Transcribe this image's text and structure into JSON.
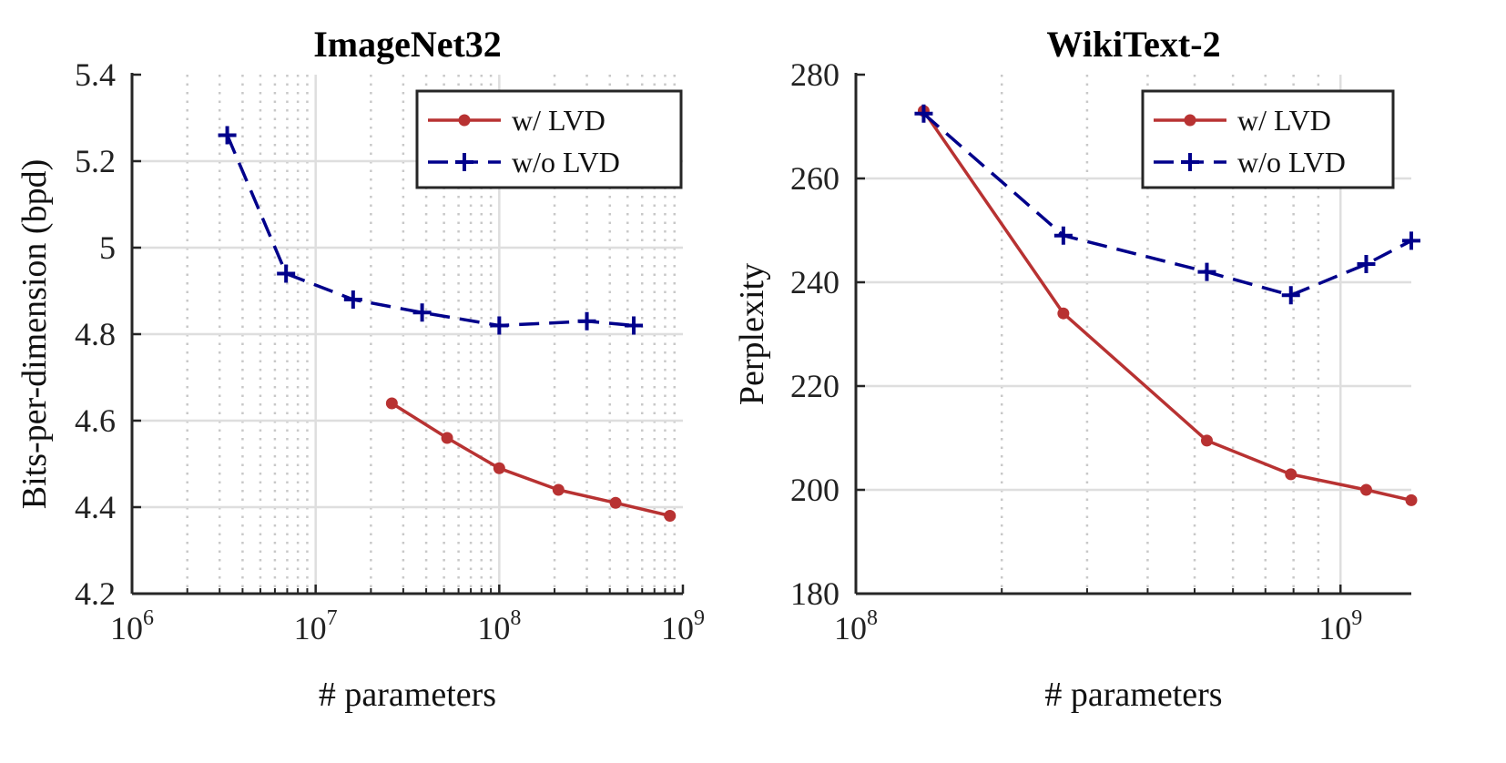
{
  "chart_data": [
    {
      "type": "line",
      "title": "ImageNet32",
      "xlabel": "# parameters",
      "ylabel": "Bits-per-dimension (bpd)",
      "xscale": "log",
      "xlim": [
        1000000,
        1000000000
      ],
      "ylim": [
        4.2,
        5.4
      ],
      "x_ticks": [
        {
          "base": "10",
          "exp": "6"
        },
        {
          "base": "10",
          "exp": "7"
        },
        {
          "base": "10",
          "exp": "8"
        },
        {
          "base": "10",
          "exp": "9"
        }
      ],
      "y_ticks": [
        "4.2",
        "4.4",
        "4.6",
        "4.8",
        "5",
        "5.2",
        "5.4"
      ],
      "grid": true,
      "legend_position": "top-right",
      "series": [
        {
          "name": "w/ LVD",
          "color": "#b83232",
          "marker": "dot",
          "dashed": false,
          "x": [
            26000000,
            52000000,
            100000000,
            210000000,
            430000000,
            850000000
          ],
          "y": [
            4.64,
            4.56,
            4.49,
            4.44,
            4.41,
            4.38
          ]
        },
        {
          "name": "w/o LVD",
          "color": "#00008b",
          "marker": "plus",
          "dashed": true,
          "x": [
            3300000,
            6900000,
            16000000,
            38000000,
            100000000,
            300000000,
            540000000
          ],
          "y": [
            5.26,
            4.94,
            4.88,
            4.85,
            4.82,
            4.83,
            4.82
          ]
        }
      ]
    },
    {
      "type": "line",
      "title": "WikiText-2",
      "xlabel": "# parameters",
      "ylabel": "Perplexity",
      "xscale": "log",
      "xlim": [
        100000000,
        1400000000
      ],
      "ylim": [
        180,
        280
      ],
      "x_ticks": [
        {
          "base": "10",
          "exp": "8"
        },
        {
          "base": "10",
          "exp": "9"
        }
      ],
      "y_ticks": [
        "180",
        "200",
        "220",
        "240",
        "260",
        "280"
      ],
      "grid": true,
      "legend_position": "top-right",
      "series": [
        {
          "name": "w/ LVD",
          "color": "#b83232",
          "marker": "dot",
          "dashed": false,
          "x": [
            138000000,
            268000000,
            530000000,
            790000000,
            1130000000,
            1400000000
          ],
          "y": [
            273,
            234,
            209.5,
            203,
            200,
            198
          ]
        },
        {
          "name": "w/o LVD",
          "color": "#00008b",
          "marker": "plus",
          "dashed": true,
          "x": [
            138000000,
            268000000,
            530000000,
            790000000,
            1130000000,
            1400000000
          ],
          "y": [
            272.5,
            249,
            242,
            237.5,
            243.5,
            248
          ]
        }
      ]
    }
  ]
}
